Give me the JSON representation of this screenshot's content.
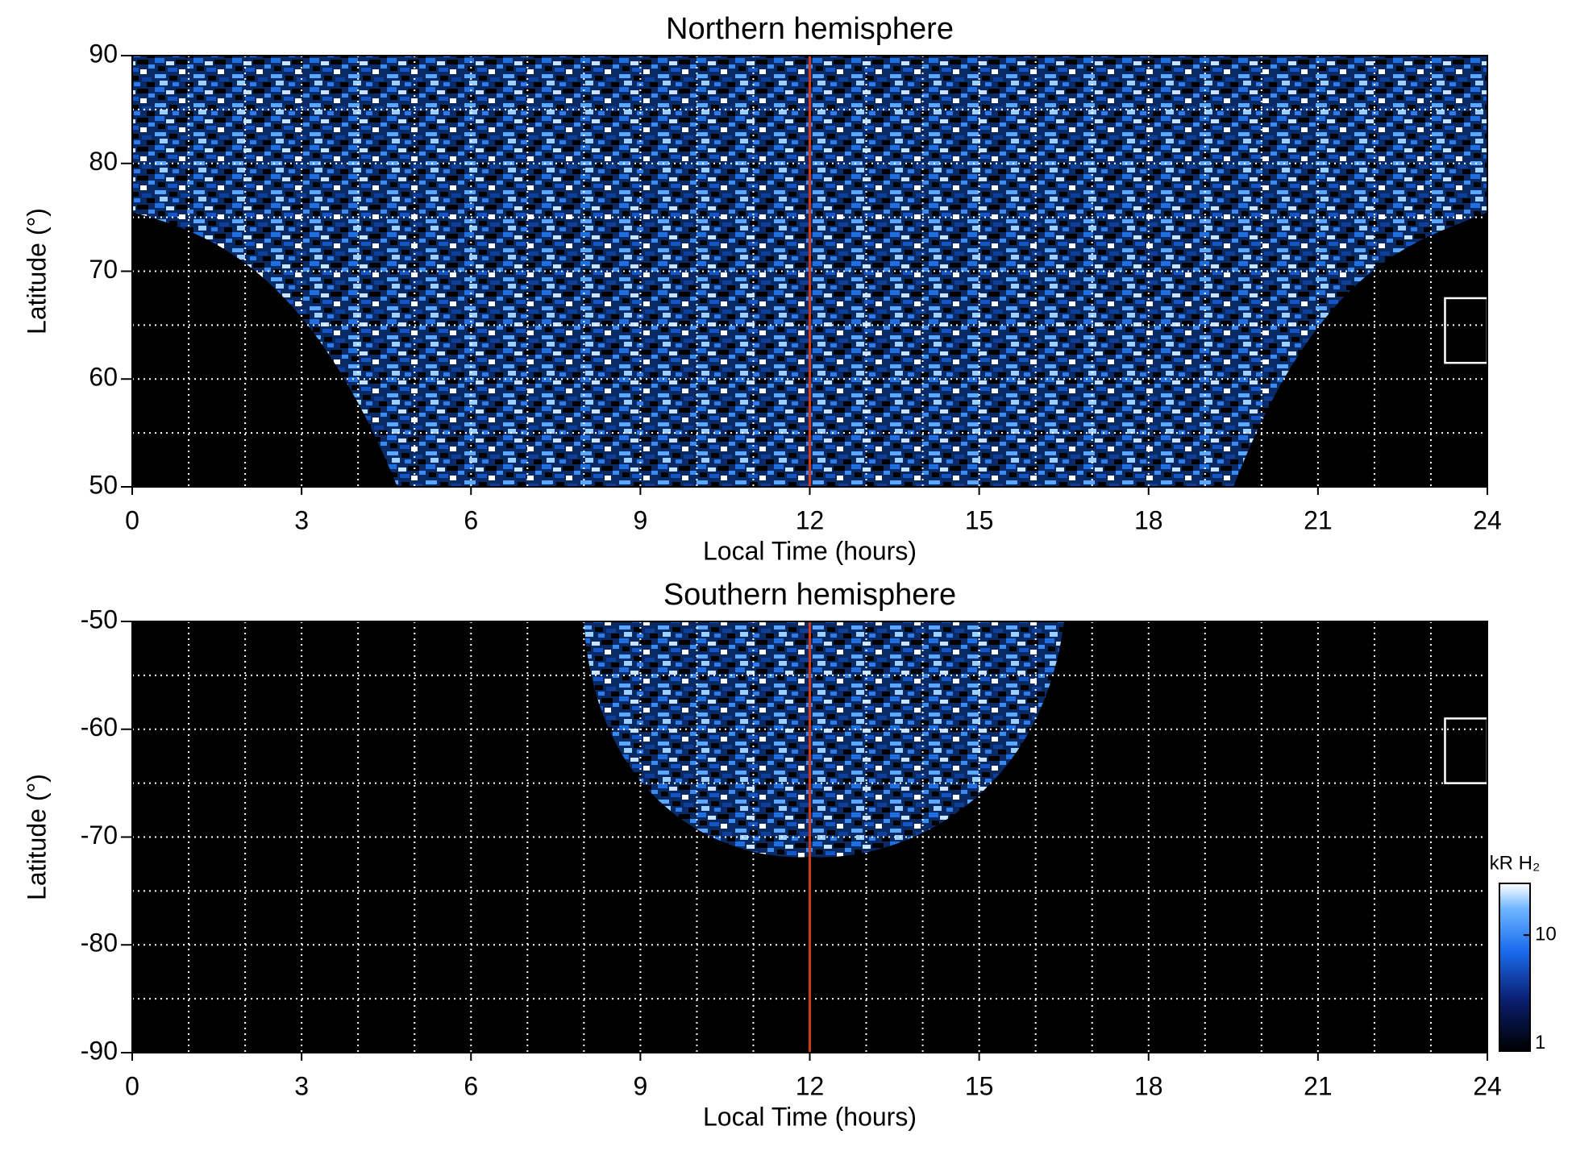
{
  "chart_data": [
    {
      "type": "heatmap",
      "title": "Northern hemisphere",
      "x_label": "Local Time (hours)",
      "y_label": "Latitude (°)",
      "xlim": [
        0,
        24
      ],
      "xticks": [
        0,
        3,
        6,
        9,
        12,
        15,
        18,
        21,
        24
      ],
      "ylim": [
        50,
        90
      ],
      "yticks": [
        50,
        60,
        70,
        80,
        90
      ],
      "xgrid": [
        1,
        2,
        3,
        4,
        5,
        6,
        7,
        8,
        9,
        10,
        11,
        12,
        13,
        14,
        15,
        16,
        17,
        18,
        19,
        20,
        21,
        22,
        23
      ],
      "ygrid": [
        55,
        60,
        65,
        70,
        75,
        80,
        85
      ],
      "vline": {
        "x": 12,
        "color": "#d03a1a"
      },
      "box": {
        "x": [
          23.25,
          24
        ],
        "y": [
          61.5,
          67.5
        ]
      }
    },
    {
      "type": "heatmap",
      "title": "Southern hemisphere",
      "x_label": "Local Time (hours)",
      "y_label": "Latitude (°)",
      "xlim": [
        0,
        24
      ],
      "xticks": [
        0,
        3,
        6,
        9,
        12,
        15,
        18,
        21,
        24
      ],
      "ylim": [
        -90,
        -50
      ],
      "yticks": [
        -90,
        -80,
        -70,
        -60,
        -50
      ],
      "xgrid": [
        1,
        2,
        3,
        4,
        5,
        6,
        7,
        8,
        9,
        10,
        11,
        12,
        13,
        14,
        15,
        16,
        17,
        18,
        19,
        20,
        21,
        22,
        23
      ],
      "ygrid": [
        -85,
        -80,
        -75,
        -70,
        -65,
        -60,
        -55
      ],
      "vline": {
        "x": 12,
        "color": "#d03a1a"
      },
      "box": {
        "x": [
          23.25,
          24
        ],
        "y": [
          -65,
          -59
        ]
      },
      "colorbar": {
        "label": "kR H₂",
        "scale": "log",
        "lim": [
          0.85,
          30
        ],
        "ticks": [
          1,
          10
        ]
      }
    }
  ]
}
